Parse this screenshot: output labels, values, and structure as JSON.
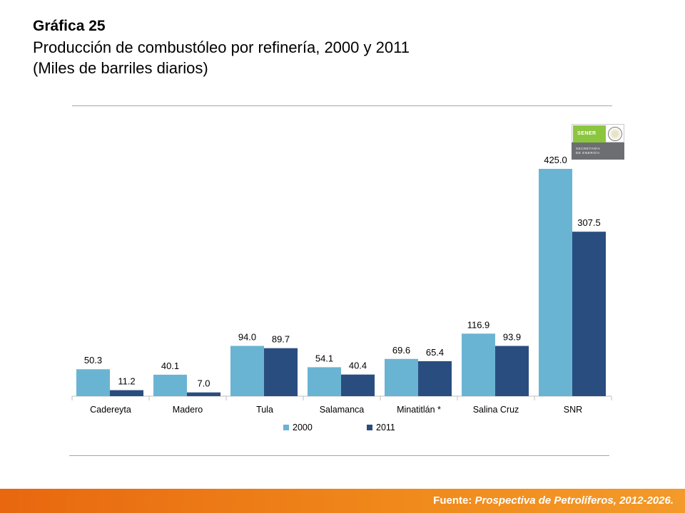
{
  "title": {
    "main": "Gráfica 25",
    "line1": "Producción  de combustóleo por refinería, 2000 y 2011",
    "line2": "(Miles de barriles diarios)"
  },
  "logo": {
    "brand": "SENER",
    "line1": "SECRETARÍA",
    "line2": "DE ENERGÍA"
  },
  "footer": {
    "label": "Fuente:",
    "source": "Prospectiva de Petrolíferos, 2012-2026."
  },
  "colors": {
    "series_2000": "#6ab4d3",
    "series_2011": "#2a4d80",
    "footer": "#ee7a16"
  },
  "chart_data": {
    "type": "bar",
    "title": "Producción de combustóleo por refinería, 2000 y 2011",
    "ylabel": "Miles de barriles diarios",
    "xlabel": "",
    "ylim": [
      0,
      425
    ],
    "grid": false,
    "legend": "bottom-center",
    "categories": [
      "Cadereyta",
      "Madero",
      "Tula",
      "Salamanca",
      "Minatitlán *",
      "Salina Cruz",
      "SNR"
    ],
    "series": [
      {
        "name": "2000",
        "values": [
          50.3,
          40.1,
          94.0,
          54.1,
          69.6,
          116.9,
          425.0
        ],
        "labels": [
          "50.3",
          "40.1",
          "94.0",
          "54.1",
          "69.6",
          "116.9",
          "425.0"
        ]
      },
      {
        "name": "2011",
        "values": [
          11.2,
          7.0,
          89.7,
          40.4,
          65.4,
          93.9,
          307.5
        ],
        "labels": [
          "11.2",
          "7.0",
          "89.7",
          "40.4",
          "65.4",
          "93.9",
          "307.5"
        ]
      }
    ]
  }
}
